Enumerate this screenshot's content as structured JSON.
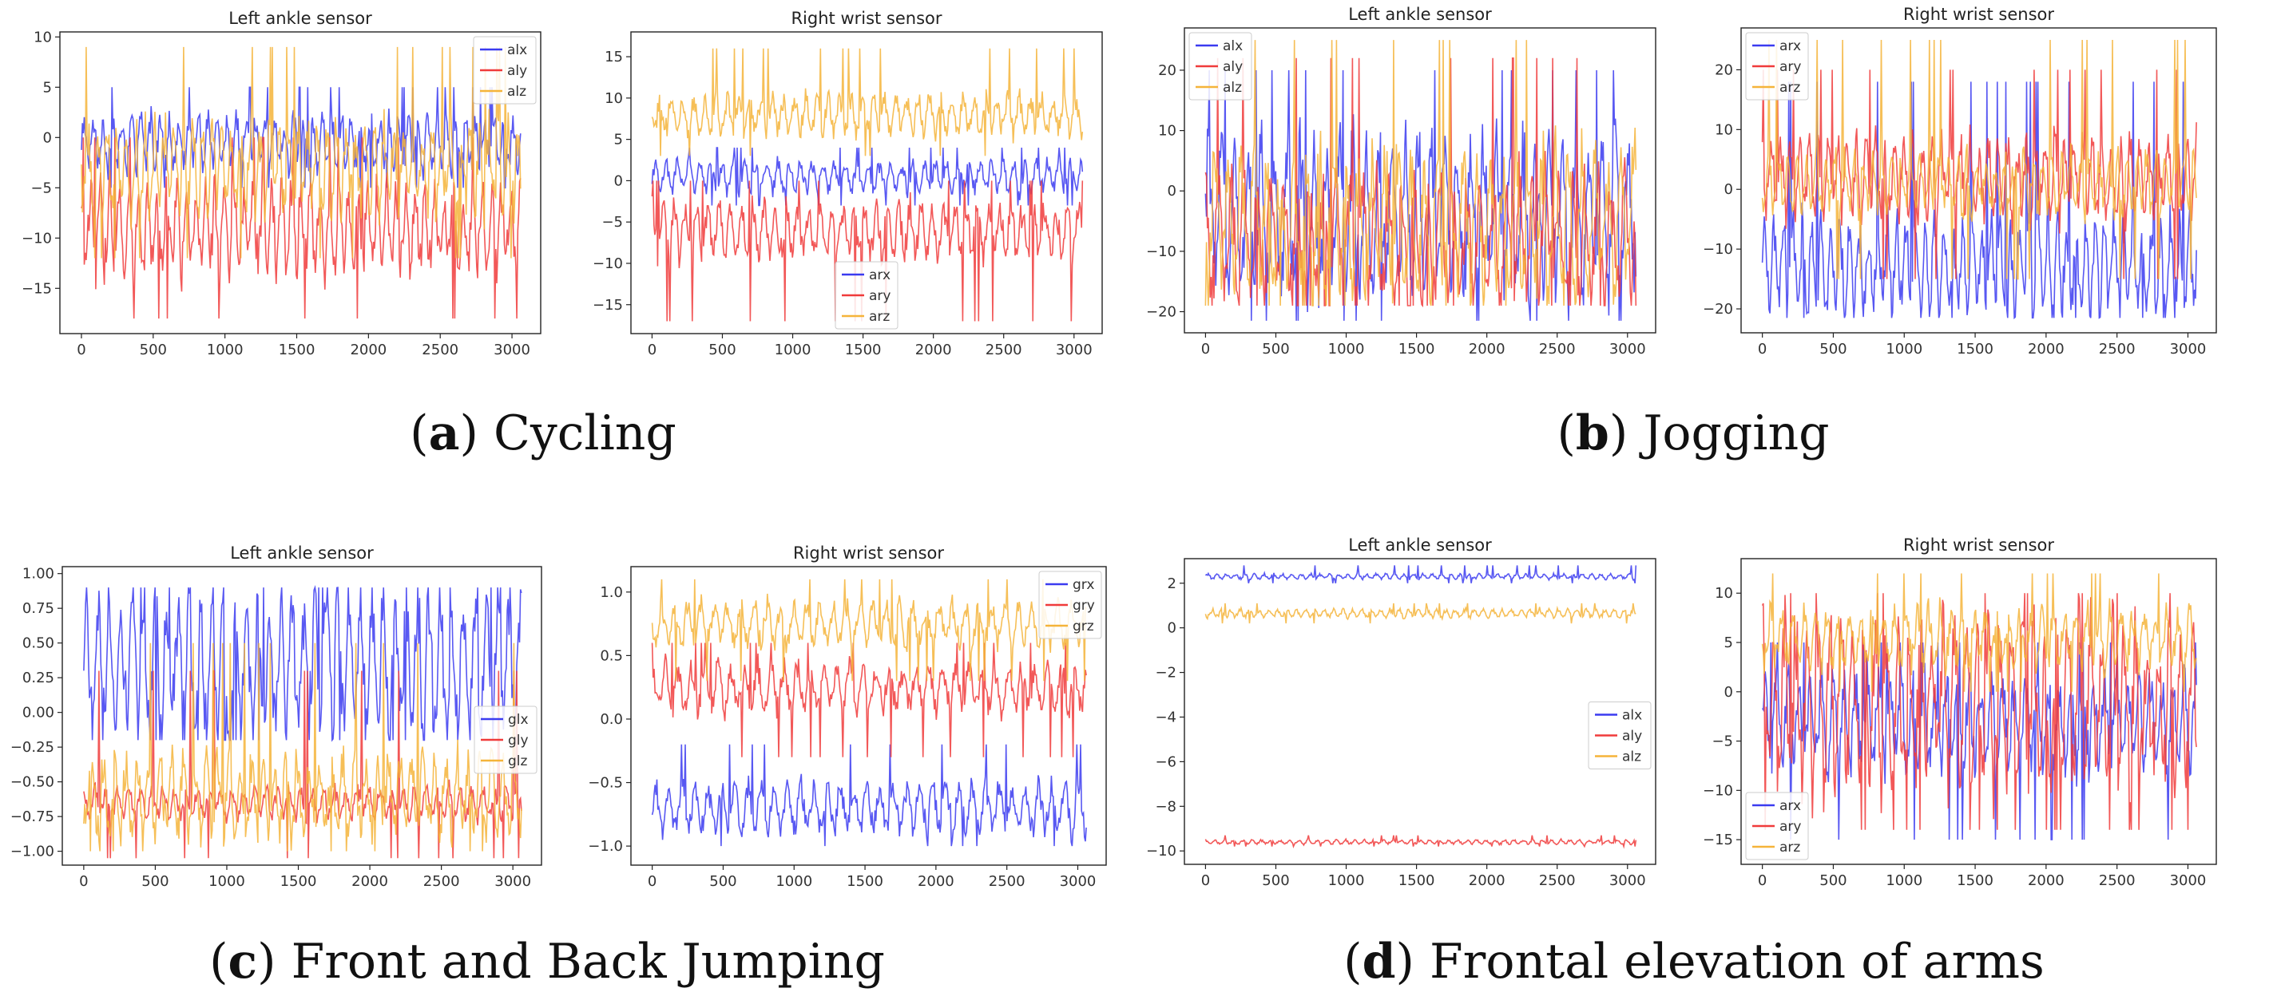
{
  "figure": {
    "captions": [
      {
        "letter": "a",
        "text": "Cycling"
      },
      {
        "letter": "b",
        "text": "Jogging"
      },
      {
        "letter": "c",
        "text": "Front and Back Jumping"
      },
      {
        "letter": "d",
        "text": "Frontal elevation of arms"
      }
    ]
  },
  "chart_data": [
    {
      "type": "line",
      "panel": "a",
      "title": "Left ankle sensor",
      "xlim": [
        -150,
        3200
      ],
      "ylim": [
        -19.5,
        10.5
      ],
      "xticks": [
        0,
        500,
        1000,
        1500,
        2000,
        2500,
        3000
      ],
      "yticks": [
        10,
        5,
        0,
        -5,
        -10,
        -15
      ],
      "x": [
        0,
        3060
      ],
      "legend": "top-right",
      "series": [
        {
          "name": "alx",
          "color": "#3b3bf0",
          "mean": -0.5,
          "amp": 2.8,
          "min": -5,
          "max": 5
        },
        {
          "name": "aly",
          "color": "#f03b3b",
          "mean": -9,
          "amp": 4.5,
          "min": -18,
          "max": 0
        },
        {
          "name": "alz",
          "color": "#f5b43a",
          "mean": -3,
          "amp": 4.5,
          "min": -12,
          "max": 9
        }
      ]
    },
    {
      "type": "line",
      "panel": "a",
      "title": "Right wrist sensor",
      "xlim": [
        -150,
        3200
      ],
      "ylim": [
        -18.5,
        18
      ],
      "xticks": [
        0,
        500,
        1000,
        1500,
        2000,
        2500,
        3000
      ],
      "yticks": [
        15,
        10,
        5,
        0,
        -5,
        -10,
        -15
      ],
      "x": [
        0,
        3060
      ],
      "legend": "lower-center",
      "series": [
        {
          "name": "arx",
          "color": "#3b3bf0",
          "mean": 0.5,
          "amp": 2,
          "min": -3,
          "max": 4
        },
        {
          "name": "ary",
          "color": "#f03b3b",
          "mean": -6,
          "amp": 3.5,
          "min": -17,
          "max": 0
        },
        {
          "name": "arz",
          "color": "#f5b43a",
          "mean": 8,
          "amp": 2.5,
          "min": 3,
          "max": 16
        }
      ]
    },
    {
      "type": "line",
      "panel": "b",
      "title": "Left ankle sensor",
      "xlim": [
        -150,
        3200
      ],
      "ylim": [
        -23.5,
        27
      ],
      "xticks": [
        0,
        500,
        1000,
        1500,
        2000,
        2500,
        3000
      ],
      "yticks": [
        20,
        10,
        0,
        -10,
        -20
      ],
      "x": [
        0,
        3060
      ],
      "legend": "top-left",
      "series": [
        {
          "name": "alx",
          "color": "#3b3bf0",
          "mean": -4,
          "amp": 13,
          "min": -21.5,
          "max": 20
        },
        {
          "name": "aly",
          "color": "#f03b3b",
          "mean": -8,
          "amp": 11,
          "min": -19,
          "max": 22
        },
        {
          "name": "alz",
          "color": "#f5b43a",
          "mean": -5,
          "amp": 12,
          "min": -19,
          "max": 25
        }
      ]
    },
    {
      "type": "line",
      "panel": "b",
      "title": "Right wrist sensor",
      "xlim": [
        -150,
        3200
      ],
      "ylim": [
        -24,
        27
      ],
      "xticks": [
        0,
        500,
        1000,
        1500,
        2000,
        2500,
        3000
      ],
      "yticks": [
        20,
        10,
        0,
        -10,
        -20
      ],
      "x": [
        0,
        3060
      ],
      "legend": "top-left",
      "series": [
        {
          "name": "arx",
          "color": "#3b3bf0",
          "mean": -13,
          "amp": 8,
          "min": -21.5,
          "max": 18
        },
        {
          "name": "ary",
          "color": "#f03b3b",
          "mean": 2,
          "amp": 7,
          "min": -15,
          "max": 20
        },
        {
          "name": "arz",
          "color": "#f5b43a",
          "mean": 1,
          "amp": 5,
          "min": -15,
          "max": 25
        }
      ]
    },
    {
      "type": "line",
      "panel": "c",
      "title": "Left ankle sensor",
      "xlim": [
        -150,
        3200
      ],
      "ylim": [
        -1.1,
        1.05
      ],
      "xticks": [
        0,
        500,
        1000,
        1500,
        2000,
        2500,
        3000
      ],
      "yticks": [
        1.0,
        0.75,
        0.5,
        0.25,
        0.0,
        -0.25,
        -0.5,
        -0.75,
        -1.0
      ],
      "yticklabels": [
        "1.00",
        "0.75",
        "0.50",
        "0.25",
        "0.00",
        "−0.25",
        "−0.50",
        "−0.75",
        "−1.00"
      ],
      "x": [
        0,
        3060
      ],
      "legend": "center-right",
      "series": [
        {
          "name": "glx",
          "color": "#3b3bf0",
          "mean": 0.35,
          "amp": 0.55,
          "min": -0.2,
          "max": 0.9
        },
        {
          "name": "gly",
          "color": "#f03b3b",
          "mean": -0.65,
          "amp": 0.12,
          "min": -1.05,
          "max": 0.3
        },
        {
          "name": "glz",
          "color": "#f5b43a",
          "mean": -0.6,
          "amp": 0.3,
          "min": -1.0,
          "max": 0.5
        }
      ]
    },
    {
      "type": "line",
      "panel": "c",
      "title": "Right wrist sensor",
      "xlim": [
        -150,
        3200
      ],
      "ylim": [
        -1.15,
        1.2
      ],
      "xticks": [
        0,
        500,
        1000,
        1500,
        2000,
        2500,
        3000
      ],
      "yticks": [
        1.0,
        0.5,
        0.0,
        -0.5,
        -1.0
      ],
      "yticklabels": [
        "1.0",
        "0.5",
        "0.0",
        "−0.5",
        "−1.0"
      ],
      "x": [
        0,
        3060
      ],
      "legend": "top-right",
      "series": [
        {
          "name": "grx",
          "color": "#3b3bf0",
          "mean": -0.7,
          "amp": 0.2,
          "min": -1.0,
          "max": -0.2
        },
        {
          "name": "gry",
          "color": "#f03b3b",
          "mean": 0.25,
          "amp": 0.2,
          "min": -0.3,
          "max": 0.6
        },
        {
          "name": "grz",
          "color": "#f5b43a",
          "mean": 0.75,
          "amp": 0.18,
          "min": 0.3,
          "max": 1.1
        }
      ]
    },
    {
      "type": "line",
      "panel": "d",
      "title": "Left ankle sensor",
      "xlim": [
        -150,
        3200
      ],
      "ylim": [
        -10.6,
        3.1
      ],
      "xticks": [
        0,
        500,
        1000,
        1500,
        2000,
        2500,
        3000
      ],
      "yticks": [
        2,
        0,
        -2,
        -4,
        -6,
        -8,
        -10
      ],
      "x": [
        0,
        3060
      ],
      "legend": "center-right",
      "series": [
        {
          "name": "alx",
          "color": "#3b3bf0",
          "mean": 2.3,
          "amp": 0.12,
          "min": 2.0,
          "max": 2.8
        },
        {
          "name": "aly",
          "color": "#f03b3b",
          "mean": -9.6,
          "amp": 0.1,
          "min": -9.8,
          "max": -9.3
        },
        {
          "name": "alz",
          "color": "#f5b43a",
          "mean": 0.65,
          "amp": 0.2,
          "min": 0.2,
          "max": 1.1
        }
      ]
    },
    {
      "type": "line",
      "panel": "d",
      "title": "Right wrist sensor",
      "xlim": [
        -150,
        3200
      ],
      "ylim": [
        -17.5,
        13.5
      ],
      "xticks": [
        0,
        500,
        1000,
        1500,
        2000,
        2500,
        3000
      ],
      "yticks": [
        10,
        5,
        0,
        -5,
        -10,
        -15
      ],
      "x": [
        0,
        3060
      ],
      "legend": "lower-left",
      "series": [
        {
          "name": "arx",
          "color": "#3b3bf0",
          "mean": -3,
          "amp": 5,
          "min": -15,
          "max": 5
        },
        {
          "name": "ary",
          "color": "#f03b3b",
          "mean": -1,
          "amp": 9,
          "min": -14,
          "max": 10
        },
        {
          "name": "arz",
          "color": "#f5b43a",
          "mean": 5.5,
          "amp": 3,
          "min": 0,
          "max": 12
        }
      ]
    }
  ]
}
